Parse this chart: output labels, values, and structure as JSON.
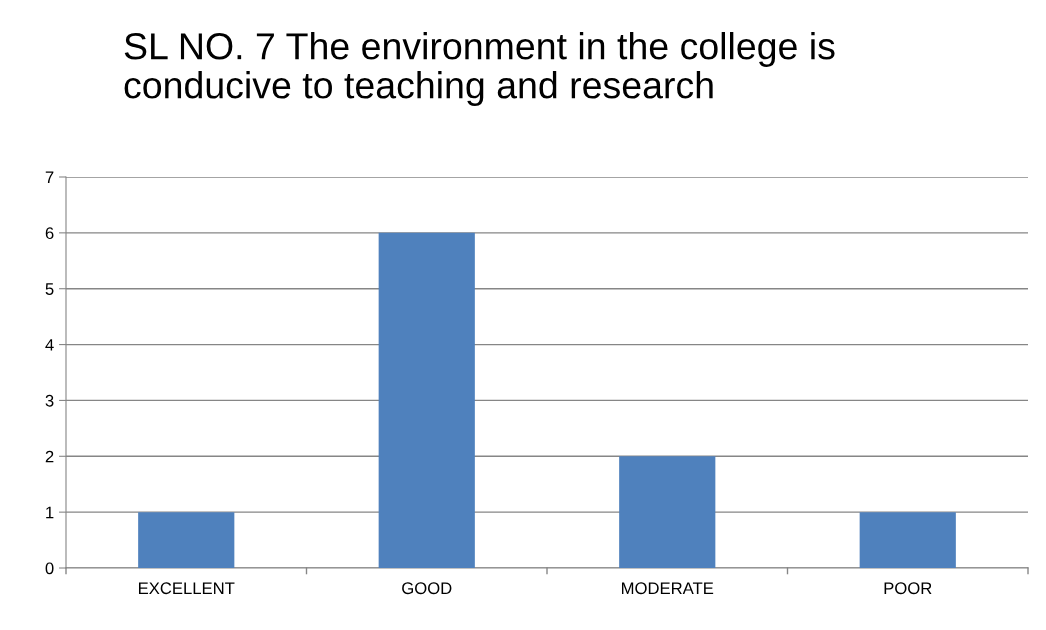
{
  "chart_data": {
    "type": "bar",
    "title": "SL NO. 7 The environment in the college is\nconducive to teaching and research",
    "categories": [
      "EXCELLENT",
      "GOOD",
      "MODERATE",
      "POOR"
    ],
    "values": [
      1,
      6,
      2,
      1
    ],
    "color": "#4f81bd",
    "ylim": [
      0,
      7
    ],
    "yticks": [
      0,
      1,
      2,
      3,
      4,
      5,
      6,
      7
    ],
    "grid": "y",
    "legend": false
  }
}
